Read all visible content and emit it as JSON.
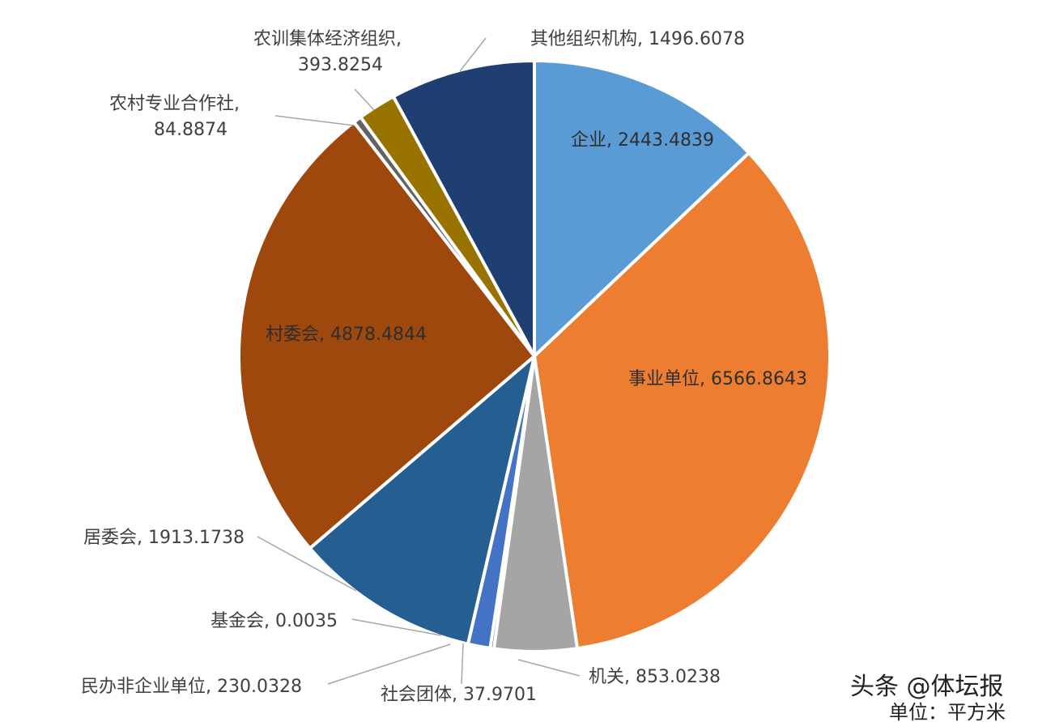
{
  "chart_data": {
    "type": "pie",
    "title": "",
    "unit_label": "单位：平方米",
    "slices": [
      {
        "name": "企业",
        "value": 2443.4839,
        "label": "企业, 2443.4839",
        "color": "#5b9bd5"
      },
      {
        "name": "事业单位",
        "value": 6566.8643,
        "label": "事业单位, 6566.8643",
        "color": "#ed7d31"
      },
      {
        "name": "机关",
        "value": 853.0238,
        "label": "机关, 853.0238",
        "color": "#a5a5a5"
      },
      {
        "name": "社会团体",
        "value": 37.9701,
        "label": "社会团体, 37.9701",
        "color": "#264478"
      },
      {
        "name": "民办非企业单位",
        "value": 230.0328,
        "label": "民办非企业单位, 230.0328",
        "color": "#4472c4"
      },
      {
        "name": "基金会",
        "value": 0.0035,
        "label": "基金会, 0.0035",
        "color": "#70ad47"
      },
      {
        "name": "居委会",
        "value": 1913.1738,
        "label": "居委会, 1913.1738",
        "color": "#255e91"
      },
      {
        "name": "村委会",
        "value": 4878.4844,
        "label": "村委会, 4878.4844",
        "color": "#9e480e"
      },
      {
        "name": "农村专业合作社",
        "value": 84.8874,
        "label_line1": "农村专业合作社,",
        "label_line2": "84.8874",
        "color": "#636363"
      },
      {
        "name": "农训集体经济组织",
        "value": 393.8254,
        "label_line1": "农训集体经济组织,",
        "label_line2": "393.8254",
        "color": "#997300"
      },
      {
        "name": "其他组织机构",
        "value": 1496.6078,
        "label": "其他组织机构, 1496.6078",
        "color": "#1f3f73"
      }
    ]
  },
  "watermark": "头条 @体坛报"
}
